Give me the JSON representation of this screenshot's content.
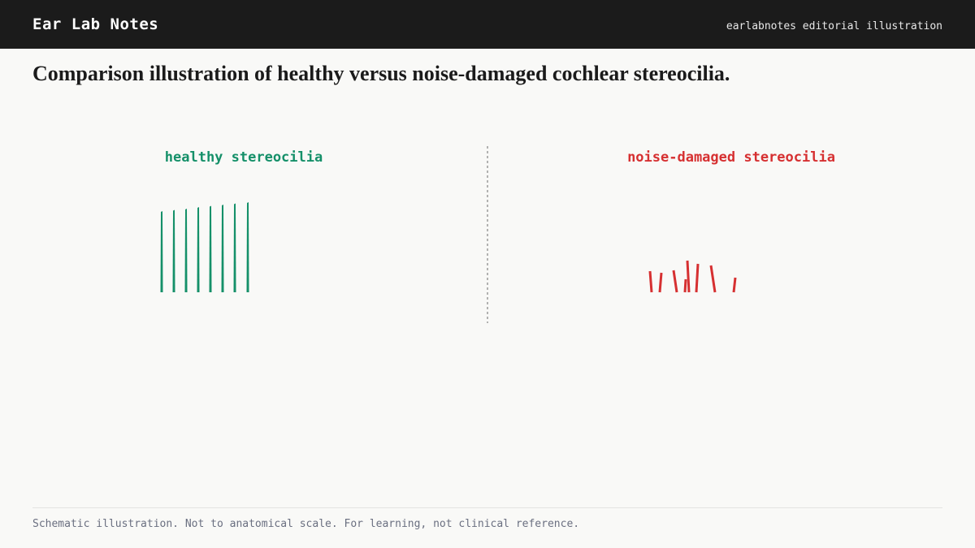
{
  "header": {
    "title": "Ear Lab Notes",
    "tagline": "earlabnotes editorial illustration"
  },
  "heading": "Comparison illustration of healthy versus noise-damaged cochlear stereocilia.",
  "panels": [
    {
      "label": "healthy stereocilia"
    },
    {
      "label": "noise-damaged stereocilia"
    }
  ],
  "footer": "Schematic illustration. Not to anatomical scale. For learning, not clinical reference."
}
